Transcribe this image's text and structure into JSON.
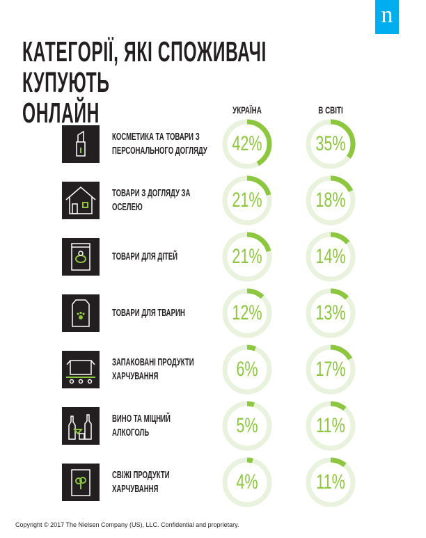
{
  "logo": "n",
  "title_line1": "КАТЕГОРІЇ, ЯКІ СПОЖИВАЧІ КУПУЮТЬ",
  "title_line2": "ОНЛАЙН",
  "colors": {
    "accent": "#8dc63f",
    "track": "#e8f2dc",
    "icon_bg": "#231f20",
    "logo": "#00aeef"
  },
  "chart_data": {
    "type": "donut",
    "series": [
      {
        "name": "УКРАЇНА"
      },
      {
        "name": "В СВІТІ"
      }
    ],
    "categories": [
      "КОСМЕТИКА ТА ТОВАРИ З ПЕРСОНАЛЬНОГО ДОГЛЯДУ",
      "ТОВАРИ З ДОГЛЯДУ ЗА ОСЕЛЕЮ",
      "ТОВАРИ ДЛЯ ДІТЕЙ",
      "ТОВАРИ ДЛЯ ТВАРИН",
      "ЗАПАКОВАНІ ПРОДУКТИ ХАРЧУВАННЯ",
      "ВИНО ТА МІЦНИЙ АЛКОГОЛЬ",
      "СВІЖІ ПРОДУКТИ ХАРЧУВАННЯ"
    ],
    "rows": [
      {
        "l1": "КОСМЕТИКА ТА ТОВАРИ З",
        "l2": "ПЕРСОНАЛЬНОГО ДОГЛЯДУ",
        "icon": "lipstick-icon",
        "ua": 42,
        "ua_label": "42%",
        "world": 35,
        "world_label": "35%"
      },
      {
        "l1": "ТОВАРИ З ДОГЛЯДУ ЗА",
        "l2": "ОСЕЛЕЮ",
        "icon": "house-icon",
        "ua": 21,
        "ua_label": "21%",
        "world": 18,
        "world_label": "18%"
      },
      {
        "l1": "ТОВАРИ ДЛЯ ДІТЕЙ",
        "l2": "",
        "icon": "baby-food-pouch-icon",
        "ua": 21,
        "ua_label": "21%",
        "world": 14,
        "world_label": "14%"
      },
      {
        "l1": "ТОВАРИ ДЛЯ ТВАРИН",
        "l2": "",
        "icon": "pet-food-bag-icon",
        "ua": 12,
        "ua_label": "12%",
        "world": 13,
        "world_label": "13%"
      },
      {
        "l1": "ЗАПАКОВАНІ ПРОДУКТИ",
        "l2": "ХАРЧУВАННЯ",
        "icon": "box-conveyor-icon",
        "ua": 6,
        "ua_label": "6%",
        "world": 17,
        "world_label": "17%"
      },
      {
        "l1": "ВИНО ТА МІЦНИЙ",
        "l2": "АЛКОГОЛЬ",
        "icon": "wine-bottles-icon",
        "ua": 5,
        "ua_label": "5%",
        "world": 11,
        "world_label": "11%"
      },
      {
        "l1": "СВІЖІ ПРОДУКТИ",
        "l2": "ХАРЧУВАННЯ",
        "icon": "broccoli-bag-icon",
        "ua": 4,
        "ua_label": "4%",
        "world": 11,
        "world_label": "11%"
      }
    ]
  },
  "footer": "Copyright © 2017 The Nielsen Company (US), LLC. Confidential and proprietary."
}
